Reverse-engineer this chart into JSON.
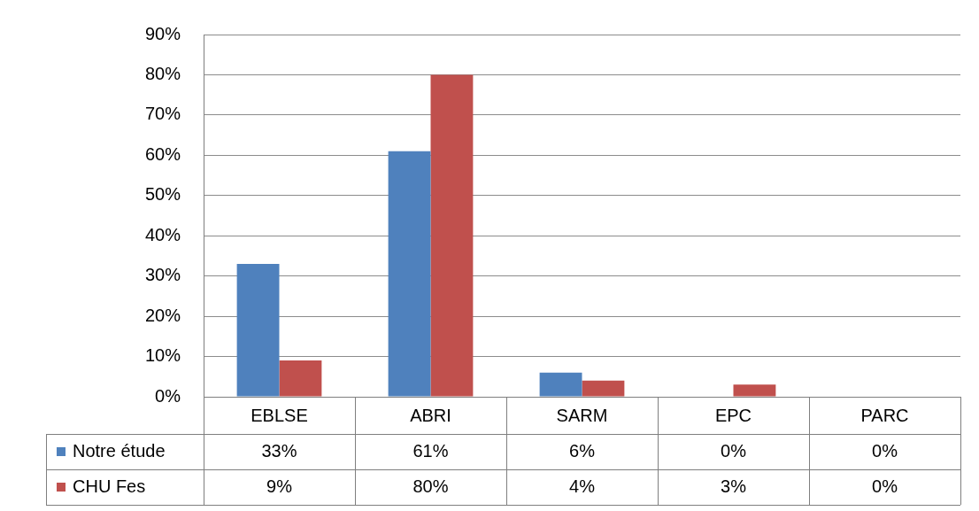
{
  "chart_data": {
    "type": "bar",
    "categories": [
      "EBLSE",
      "ABRI",
      "SARM",
      "EPC",
      "PARC"
    ],
    "series": [
      {
        "name": "Notre étude",
        "color": "#4f81bd",
        "values": [
          33,
          61,
          6,
          0,
          0
        ],
        "value_labels": [
          "33%",
          "61%",
          "6%",
          "0%",
          "0%"
        ]
      },
      {
        "name": "CHU Fes",
        "color": "#c0504d",
        "values": [
          9,
          80,
          4,
          3,
          0
        ],
        "value_labels": [
          "9%",
          "80%",
          "4%",
          "3%",
          "0%"
        ]
      }
    ],
    "ylim": [
      0,
      90
    ],
    "yticks": [
      {
        "value": 0,
        "label": "0%"
      },
      {
        "value": 10,
        "label": "10%"
      },
      {
        "value": 20,
        "label": "20%"
      },
      {
        "value": 30,
        "label": "30%"
      },
      {
        "value": 40,
        "label": "40%"
      },
      {
        "value": 50,
        "label": "50%"
      },
      {
        "value": 60,
        "label": "60%"
      },
      {
        "value": 70,
        "label": "70%"
      },
      {
        "value": 80,
        "label": "80%"
      },
      {
        "value": 90,
        "label": "90%"
      }
    ],
    "grid": "y",
    "legend": "bottom"
  }
}
